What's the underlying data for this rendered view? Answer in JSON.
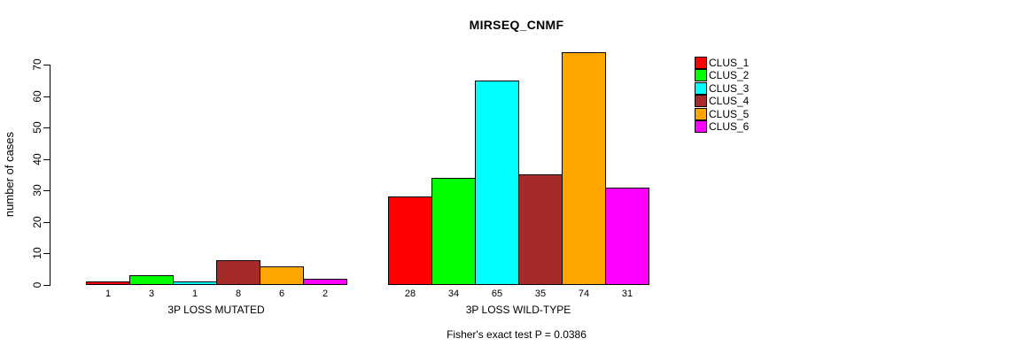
{
  "chart_data": {
    "type": "bar",
    "title": "MIRSEQ_CNMF",
    "ylabel": "number of cases",
    "xlabel": "",
    "yticks": [
      0,
      10,
      20,
      30,
      40,
      50,
      60,
      70
    ],
    "ylim": [
      0,
      74
    ],
    "grid": false,
    "legend_position": "top-right-outside",
    "categories": [
      "3P LOSS MUTATED",
      "3P LOSS WILD-TYPE"
    ],
    "series": [
      {
        "name": "CLUS_1",
        "color": "#ff0000",
        "values": [
          1,
          28
        ]
      },
      {
        "name": "CLUS_2",
        "color": "#00ff00",
        "values": [
          3,
          34
        ]
      },
      {
        "name": "CLUS_3",
        "color": "#00ffff",
        "values": [
          1,
          65
        ]
      },
      {
        "name": "CLUS_4",
        "color": "#a52a2a",
        "values": [
          8,
          35
        ]
      },
      {
        "name": "CLUS_5",
        "color": "#ffa500",
        "values": [
          6,
          74
        ]
      },
      {
        "name": "CLUS_6",
        "color": "#ff00ff",
        "values": [
          2,
          31
        ]
      }
    ],
    "bar_value_labels_shown": true,
    "annotation": "Fisher's exact test P = 0.0386"
  }
}
